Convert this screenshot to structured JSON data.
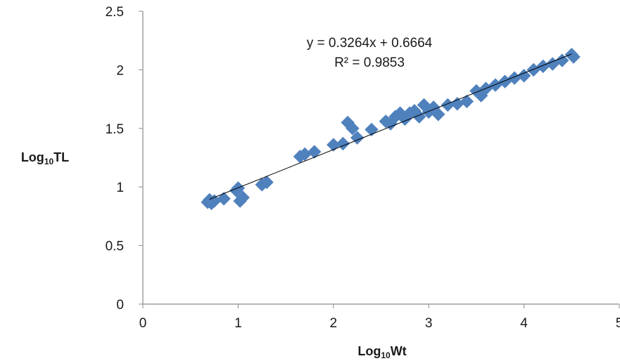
{
  "chart_data": {
    "type": "scatter",
    "title": "",
    "xlabel": {
      "base": "Log",
      "sub": "10",
      "rest": "Wt"
    },
    "ylabel": {
      "base": "Log",
      "sub": "10",
      "rest": "TL"
    },
    "xlim": [
      0,
      5
    ],
    "ylim": [
      0,
      2.5
    ],
    "x_ticks": [
      "0",
      "1",
      "2",
      "3",
      "4",
      "5"
    ],
    "y_ticks": [
      "0",
      "0.5",
      "1",
      "1.5",
      "2",
      "2.5"
    ],
    "grid": false,
    "legend": "none",
    "marker": "diamond",
    "marker_color": "#4f81bd",
    "line_color": "#000000",
    "trendline": {
      "slope": 0.3264,
      "intercept": 0.6664,
      "x_range": [
        0.7,
        4.5
      ]
    },
    "annotations": {
      "equation": "y = 0.3264x + 0.6664",
      "r_squared": "R² = 0.9853"
    },
    "series": [
      {
        "x": [
          0.68,
          0.7,
          0.72,
          0.75,
          0.85,
          0.98,
          1.0,
          1.02,
          1.05,
          1.25,
          1.3,
          1.65,
          1.7,
          1.8,
          2.0,
          2.1,
          2.15,
          2.2,
          2.25,
          2.4,
          2.55,
          2.6,
          2.65,
          2.7,
          2.75,
          2.8,
          2.85,
          2.9,
          2.95,
          3.0,
          3.05,
          3.1,
          3.2,
          3.3,
          3.4,
          3.5,
          3.55,
          3.6,
          3.7,
          3.8,
          3.9,
          4.0,
          4.1,
          4.2,
          4.3,
          4.4,
          4.5,
          4.52
        ],
        "y": [
          0.87,
          0.89,
          0.86,
          0.88,
          0.9,
          0.97,
          0.99,
          0.88,
          0.91,
          1.02,
          1.04,
          1.26,
          1.28,
          1.3,
          1.36,
          1.37,
          1.55,
          1.5,
          1.42,
          1.49,
          1.56,
          1.54,
          1.6,
          1.63,
          1.58,
          1.63,
          1.65,
          1.6,
          1.7,
          1.64,
          1.68,
          1.62,
          1.7,
          1.71,
          1.73,
          1.82,
          1.78,
          1.84,
          1.87,
          1.9,
          1.93,
          1.95,
          2.0,
          2.03,
          2.05,
          2.08,
          2.13,
          2.11
        ]
      }
    ]
  }
}
